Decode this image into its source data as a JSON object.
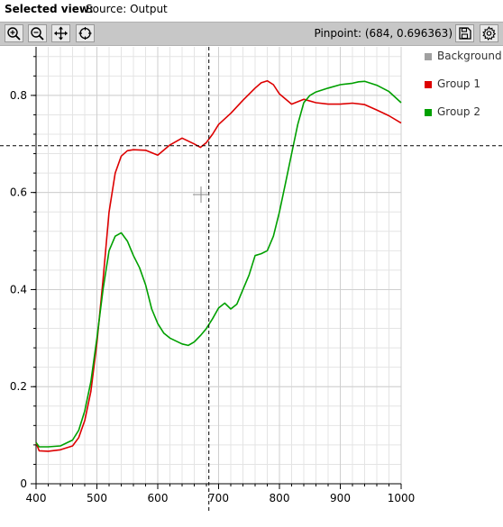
{
  "header": {
    "label": "Selected view:",
    "value": "Source: Output"
  },
  "toolbar": {
    "buttons": [
      {
        "name": "zoom-in-button",
        "icon": "zoom-in-icon"
      },
      {
        "name": "zoom-out-button",
        "icon": "zoom-out-icon"
      },
      {
        "name": "pan-button",
        "icon": "move-arrows-icon"
      },
      {
        "name": "reset-view-button",
        "icon": "crosshair-target-icon"
      }
    ],
    "pinpoint_text": "Pinpoint: (684, 0.696363)",
    "save_icon": "save-icon",
    "settings_icon": "gear-icon"
  },
  "legend": {
    "items": [
      {
        "label": "Background",
        "color": "#a0a0a0"
      },
      {
        "label": "Group 1",
        "color": "#dd0000"
      },
      {
        "label": "Group 2",
        "color": "#00a000"
      }
    ]
  },
  "chart_data": {
    "type": "line",
    "xlabel": "",
    "ylabel": "",
    "xlim": [
      400,
      1000
    ],
    "ylim": [
      0,
      0.9
    ],
    "x_ticks": [
      400,
      500,
      600,
      700,
      800,
      900,
      1000
    ],
    "y_ticks": [
      0,
      0.2,
      0.4,
      0.6,
      0.8
    ],
    "grid": true,
    "legend_position": "right",
    "pinpoint": {
      "x": 684,
      "y": 0.696363
    },
    "series": [
      {
        "name": "Group 1",
        "color": "#dd0000",
        "x": [
          400,
          405,
          420,
          440,
          460,
          470,
          480,
          490,
          500,
          510,
          520,
          530,
          540,
          550,
          560,
          580,
          600,
          620,
          640,
          660,
          670,
          680,
          690,
          700,
          720,
          740,
          760,
          770,
          780,
          790,
          800,
          820,
          840,
          860,
          880,
          900,
          920,
          940,
          960,
          980,
          1000
        ],
        "values": [
          0.085,
          0.068,
          0.067,
          0.07,
          0.078,
          0.095,
          0.13,
          0.19,
          0.29,
          0.42,
          0.56,
          0.64,
          0.675,
          0.686,
          0.688,
          0.687,
          0.677,
          0.698,
          0.712,
          0.7,
          0.693,
          0.703,
          0.72,
          0.74,
          0.763,
          0.79,
          0.815,
          0.826,
          0.83,
          0.822,
          0.803,
          0.782,
          0.792,
          0.785,
          0.782,
          0.782,
          0.784,
          0.781,
          0.77,
          0.758,
          0.743
        ]
      },
      {
        "name": "Group 2",
        "color": "#00a000",
        "x": [
          400,
          405,
          420,
          440,
          460,
          470,
          480,
          490,
          500,
          510,
          520,
          530,
          540,
          550,
          560,
          570,
          580,
          590,
          600,
          610,
          620,
          640,
          650,
          660,
          670,
          680,
          690,
          700,
          710,
          720,
          730,
          740,
          750,
          760,
          770,
          780,
          790,
          800,
          810,
          820,
          830,
          840,
          850,
          860,
          880,
          900,
          920,
          930,
          940,
          960,
          980,
          1000
        ],
        "values": [
          0.085,
          0.076,
          0.076,
          0.078,
          0.09,
          0.11,
          0.15,
          0.21,
          0.3,
          0.4,
          0.48,
          0.51,
          0.517,
          0.5,
          0.47,
          0.445,
          0.41,
          0.36,
          0.33,
          0.31,
          0.3,
          0.288,
          0.285,
          0.292,
          0.305,
          0.32,
          0.34,
          0.362,
          0.372,
          0.36,
          0.37,
          0.4,
          0.43,
          0.47,
          0.474,
          0.48,
          0.51,
          0.56,
          0.62,
          0.68,
          0.74,
          0.785,
          0.8,
          0.807,
          0.815,
          0.822,
          0.825,
          0.828,
          0.829,
          0.821,
          0.808,
          0.785
        ]
      }
    ]
  }
}
